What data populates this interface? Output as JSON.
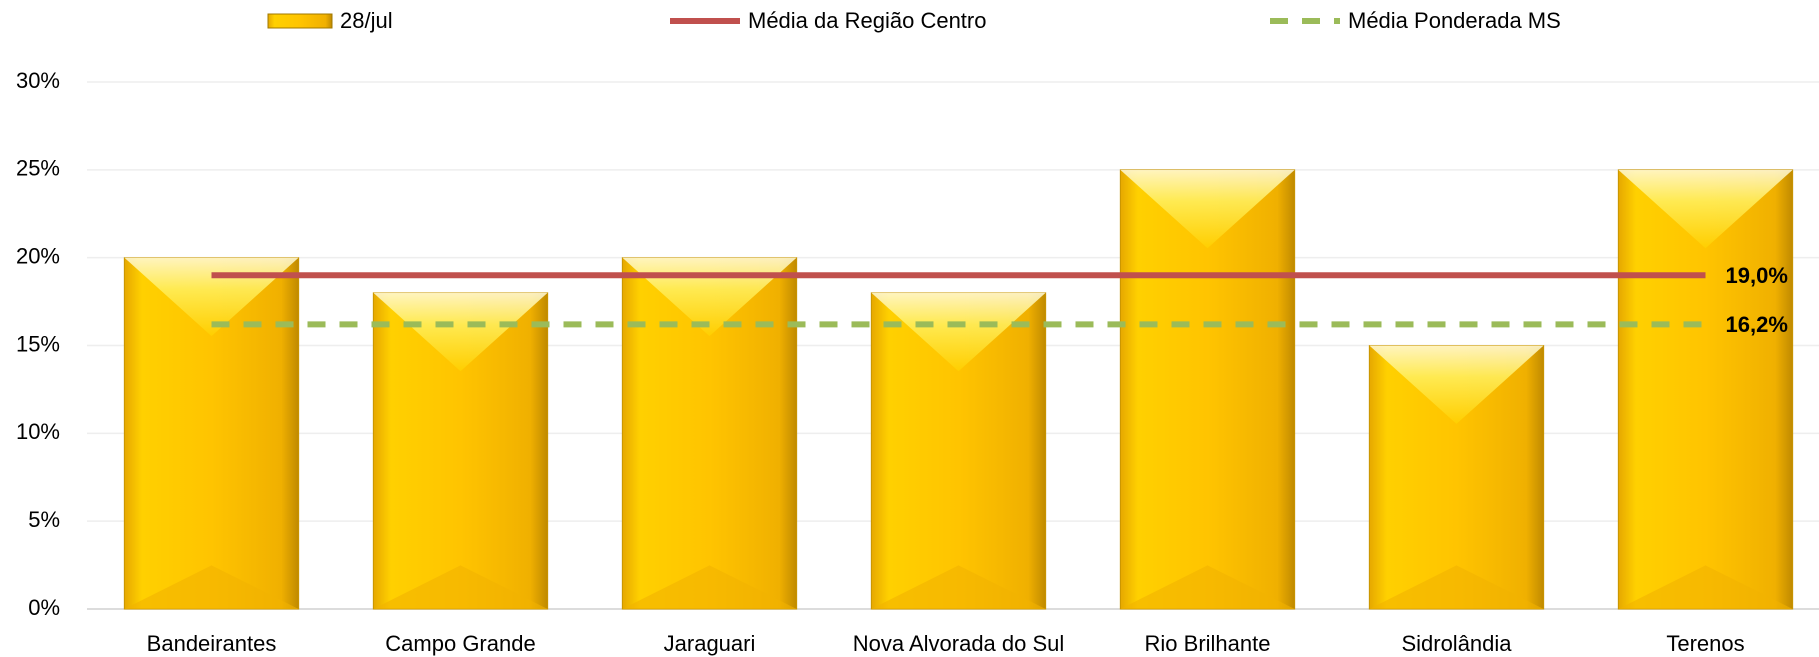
{
  "chart_data": {
    "type": "bar",
    "categories": [
      "Bandeirantes",
      "Campo Grande",
      "Jaraguari",
      "Nova Alvorada do Sul",
      "Rio Brilhante",
      "Sidrolândia",
      "Terenos"
    ],
    "series": [
      {
        "name": "28/jul",
        "color": "#ffc000",
        "values": [
          20,
          18,
          20,
          18,
          25,
          15,
          25
        ]
      }
    ],
    "lines": [
      {
        "name": "Média da Região Centro",
        "color": "#c0504d",
        "value": 19.0,
        "value_label": "19,0%",
        "dashed": false
      },
      {
        "name": "Média Ponderada MS",
        "color": "#9bbb59",
        "value": 16.2,
        "value_label": "16,2%",
        "dashed": true
      }
    ],
    "ylim": [
      0,
      30
    ],
    "yticks": [
      {
        "value": 0,
        "label": "0%"
      },
      {
        "value": 5,
        "label": "5%"
      },
      {
        "value": 10,
        "label": "10%"
      },
      {
        "value": 15,
        "label": "15%"
      },
      {
        "value": 20,
        "label": "20%"
      },
      {
        "value": 25,
        "label": "25%"
      },
      {
        "value": 30,
        "label": "30%"
      }
    ],
    "grid": true
  }
}
